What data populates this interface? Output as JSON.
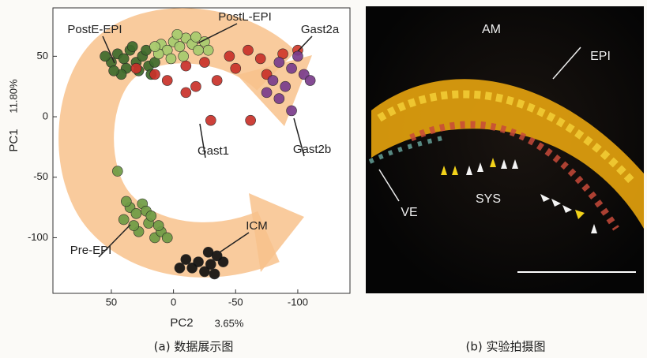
{
  "chart_data": {
    "type": "scatter",
    "xlabel": "PC2",
    "xlabel_note": "3.65%",
    "ylabel": "PC1",
    "ylabel_note": "11.80%",
    "xlim": [
      97,
      -142
    ],
    "ylim": [
      -146,
      90
    ],
    "xticks": [
      50,
      0,
      -50,
      -100
    ],
    "yticks": [
      50,
      0,
      -50,
      -100
    ],
    "series": [
      {
        "name": "PostE-EPI",
        "color": "#3e6b2c",
        "x": [
          45,
          40,
          35,
          50,
          30,
          25,
          38,
          20,
          55,
          42,
          28,
          15,
          33,
          48,
          22,
          18
        ],
        "y": [
          52,
          48,
          55,
          45,
          45,
          50,
          40,
          42,
          50,
          35,
          38,
          45,
          58,
          38,
          55,
          35
        ]
      },
      {
        "name": "PostL-EPI",
        "color": "#a6cb6e",
        "x": [
          10,
          5,
          0,
          -5,
          -10,
          -15,
          -20,
          -8,
          2,
          -25,
          12,
          -18,
          -28,
          -3,
          15
        ],
        "y": [
          60,
          55,
          62,
          58,
          65,
          60,
          55,
          50,
          48,
          62,
          52,
          66,
          55,
          68,
          58
        ]
      },
      {
        "name": "Gast1",
        "color": "#c9312a",
        "x": [
          30,
          15,
          -10,
          -25,
          -45,
          -60,
          -70,
          -50,
          -35,
          -18,
          5,
          -30,
          -62,
          -10,
          -75
        ],
        "y": [
          40,
          35,
          42,
          45,
          50,
          55,
          48,
          40,
          30,
          25,
          30,
          -3,
          -3,
          20,
          35
        ]
      },
      {
        "name": "Gast2a",
        "color": "#d03a2c",
        "x": [
          -100,
          -88
        ],
        "y": [
          55,
          52
        ]
      },
      {
        "name": "Gast2b",
        "color": "#7a3c8c",
        "x": [
          -85,
          -95,
          -105,
          -80,
          -90,
          -100,
          -110,
          -75,
          -95,
          -85
        ],
        "y": [
          45,
          40,
          35,
          30,
          25,
          50,
          30,
          20,
          5,
          15
        ]
      },
      {
        "name": "Pre-EPI",
        "color": "#6f9c45",
        "x": [
          35,
          30,
          25,
          40,
          20,
          28,
          15,
          32,
          22,
          10,
          38,
          18,
          5,
          12,
          45
        ],
        "y": [
          -75,
          -80,
          -72,
          -85,
          -88,
          -95,
          -100,
          -90,
          -78,
          -95,
          -70,
          -82,
          -100,
          -90,
          -45
        ]
      },
      {
        "name": "ICM",
        "color": "#111111",
        "x": [
          -10,
          -20,
          -30,
          -35,
          -25,
          -15,
          -40,
          -28,
          -5,
          -33
        ],
        "y": [
          -118,
          -120,
          -122,
          -115,
          -128,
          -125,
          -120,
          -112,
          -125,
          -130
        ]
      }
    ]
  },
  "image": {
    "labels": [
      "AM",
      "EPI",
      "SYS",
      "VE"
    ]
  },
  "captions": [
    "(a) 数据展示图",
    "(b) 实验拍摄图"
  ]
}
